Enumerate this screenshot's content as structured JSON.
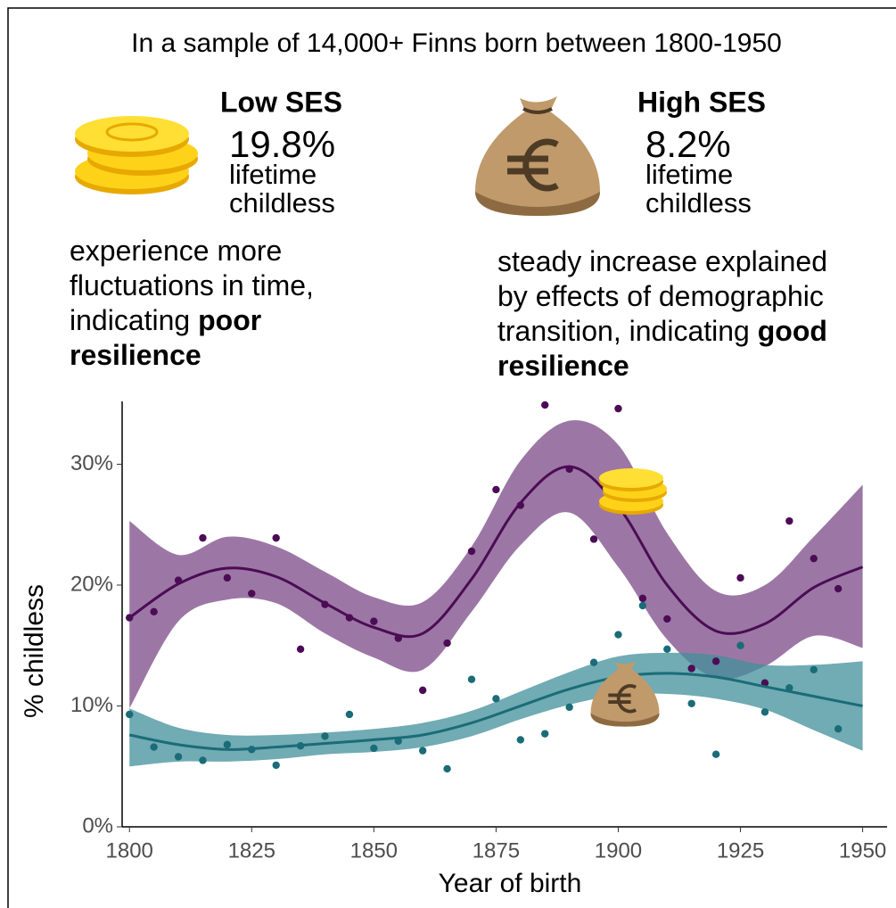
{
  "header": {
    "title": "In a sample of 14,000+ Finns born between 1800-1950"
  },
  "low_ses": {
    "label": "Low SES",
    "stat": "19.8%",
    "stat_lines": [
      "lifetime",
      "childless"
    ],
    "description": [
      [
        {
          "text": "experience more"
        }
      ],
      [
        {
          "text": "fluctuations in time,"
        }
      ],
      [
        {
          "text": "indicating "
        },
        {
          "text": "poor",
          "bold": true
        }
      ],
      [
        {
          "text": "resilience",
          "bold": true
        }
      ]
    ]
  },
  "high_ses": {
    "label": "High SES",
    "stat": "8.2%",
    "stat_lines": [
      "lifetime",
      "childless"
    ],
    "description": [
      [
        {
          "text": "steady increase explained"
        }
      ],
      [
        {
          "text": "by effects of demographic"
        }
      ],
      [
        {
          "text": "transition, indicating "
        },
        {
          "text": "good",
          "bold": true
        }
      ],
      [
        {
          "text": "resilience",
          "bold": true
        }
      ]
    ]
  },
  "chart_data": {
    "type": "scatter",
    "xlabel": "Year of birth",
    "ylabel": "% childless",
    "xlim": [
      1798.5,
      1955
    ],
    "ylim": [
      0,
      35.2
    ],
    "xticks": [
      1800,
      1825,
      1850,
      1875,
      1900,
      1925,
      1950
    ],
    "yticks": [
      {
        "value": 0,
        "label": "0%"
      },
      {
        "value": 10,
        "label": "10%"
      },
      {
        "value": 20,
        "label": "20%"
      },
      {
        "value": 30,
        "label": "30%"
      }
    ],
    "x": [
      1800,
      1805,
      1810,
      1815,
      1820,
      1825,
      1830,
      1835,
      1840,
      1845,
      1850,
      1855,
      1860,
      1865,
      1870,
      1875,
      1880,
      1885,
      1890,
      1895,
      1900,
      1905,
      1910,
      1915,
      1920,
      1925,
      1930,
      1935,
      1940,
      1945
    ],
    "fit_x": [
      1800,
      1810,
      1820,
      1830,
      1840,
      1850,
      1860,
      1870,
      1880,
      1890,
      1900,
      1910,
      1920,
      1930,
      1940,
      1950
    ],
    "series": [
      {
        "color": "#4b0c55",
        "band_color": "#7b4a87",
        "values": [
          17.3,
          17.8,
          20.4,
          23.9,
          20.6,
          19.3,
          23.9,
          14.7,
          18.4,
          17.3,
          17.0,
          15.6,
          11.3,
          15.2,
          22.8,
          27.9,
          26.6,
          34.9,
          29.6,
          23.8,
          34.6,
          18.9,
          17.2,
          13.1,
          13.7,
          20.6,
          11.9,
          25.3,
          22.2,
          19.7
        ],
        "fit": [
          17.3,
          20.1,
          21.4,
          20.7,
          18.5,
          16.5,
          16.0,
          20.5,
          26.8,
          29.8,
          26.5,
          20.0,
          16.2,
          16.8,
          19.8,
          21.5
        ],
        "upper": [
          25.3,
          22.5,
          24.0,
          23.2,
          21.1,
          19.0,
          18.6,
          23.2,
          30.3,
          33.6,
          31.6,
          24.3,
          19.5,
          20.0,
          24.0,
          28.3
        ],
        "lower": [
          9.8,
          17.0,
          18.8,
          18.5,
          16.0,
          14.0,
          13.0,
          17.8,
          23.3,
          26.0,
          21.5,
          15.5,
          12.3,
          13.3,
          15.8,
          14.8
        ]
      },
      {
        "color": "#1a6c78",
        "band_color": "#418f99",
        "values": [
          9.3,
          6.6,
          5.8,
          5.5,
          6.8,
          6.4,
          5.1,
          6.7,
          7.5,
          9.3,
          6.5,
          7.1,
          6.3,
          4.8,
          12.2,
          10.6,
          7.2,
          7.7,
          9.9,
          13.6,
          15.9,
          18.3,
          14.7,
          10.2,
          6.0,
          15.0,
          9.5,
          11.5,
          13.0,
          8.1
        ],
        "fit": [
          7.6,
          6.8,
          6.4,
          6.6,
          6.9,
          7.2,
          7.6,
          8.6,
          10.0,
          11.4,
          12.4,
          12.7,
          12.4,
          11.6,
          10.8,
          10.0
        ],
        "upper": [
          9.8,
          8.2,
          7.6,
          7.6,
          7.8,
          8.1,
          8.6,
          9.6,
          11.2,
          12.8,
          14.1,
          14.4,
          14.2,
          13.4,
          13.4,
          13.7
        ],
        "lower": [
          5.0,
          5.4,
          5.4,
          5.6,
          6.0,
          6.2,
          6.6,
          7.5,
          8.9,
          10.1,
          10.9,
          11.0,
          10.6,
          9.7,
          8.0,
          6.3
        ]
      }
    ]
  }
}
